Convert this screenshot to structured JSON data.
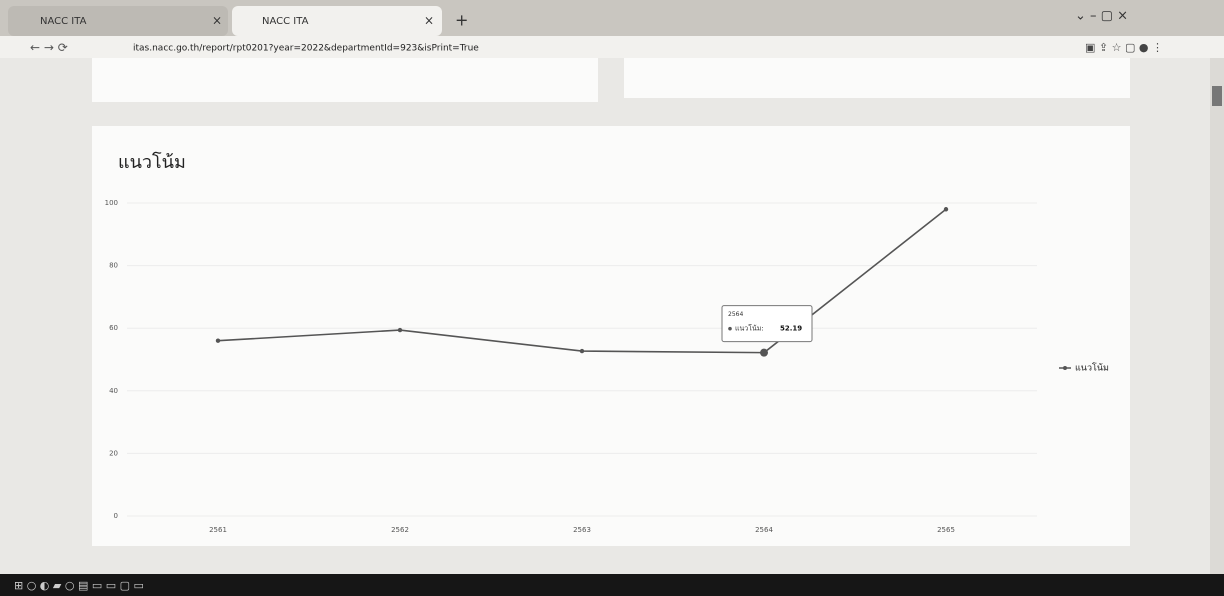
{
  "browser": {
    "tabs": [
      "NACC ITA",
      "NACC ITA"
    ],
    "url": "itas.nacc.go.th/report/rpt0201?year=2022&departmentId=923&isPrint=True"
  },
  "chart_data": {
    "type": "line",
    "title": "แนวโน้ม",
    "categories": [
      "2561",
      "2562",
      "2563",
      "2564",
      "2565"
    ],
    "series": [
      {
        "name": "แนวโน้ม",
        "color": "#555555",
        "values": [
          56,
          59.4,
          52.7,
          52.19,
          98
        ]
      }
    ],
    "ylim": [
      0,
      100
    ],
    "yticks": [
      0,
      20,
      40,
      60,
      80,
      100
    ],
    "grid": true,
    "legend": "right",
    "tooltip": {
      "title": "2564",
      "label": "แนวโน้ม:"
    }
  }
}
